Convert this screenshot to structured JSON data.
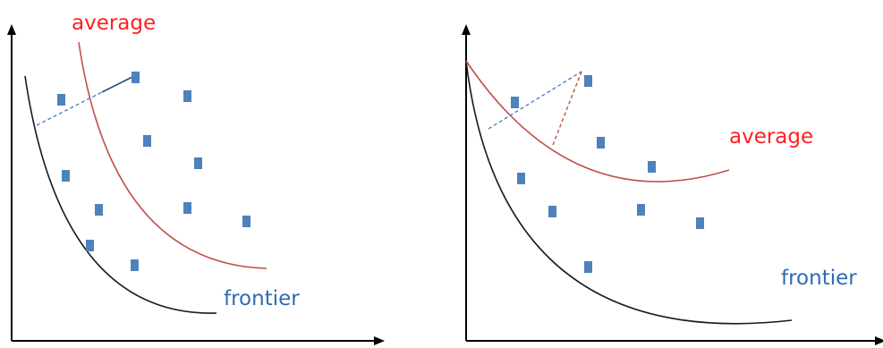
{
  "colors": {
    "axis": "#000000",
    "frontier_curve": "#1a1a1a",
    "average_curve": "#c0504d",
    "points": "#4f81bd",
    "dashed_blue": "#4f81bd",
    "dashed_red": "#c0504d",
    "label_average": "#ff2020",
    "label_frontier": "#2e6bb5"
  },
  "panels": [
    {
      "id": "left",
      "labels": {
        "average": "average",
        "frontier": "frontier"
      }
    },
    {
      "id": "right",
      "labels": {
        "average": "average",
        "frontier": "frontier"
      }
    }
  ]
}
